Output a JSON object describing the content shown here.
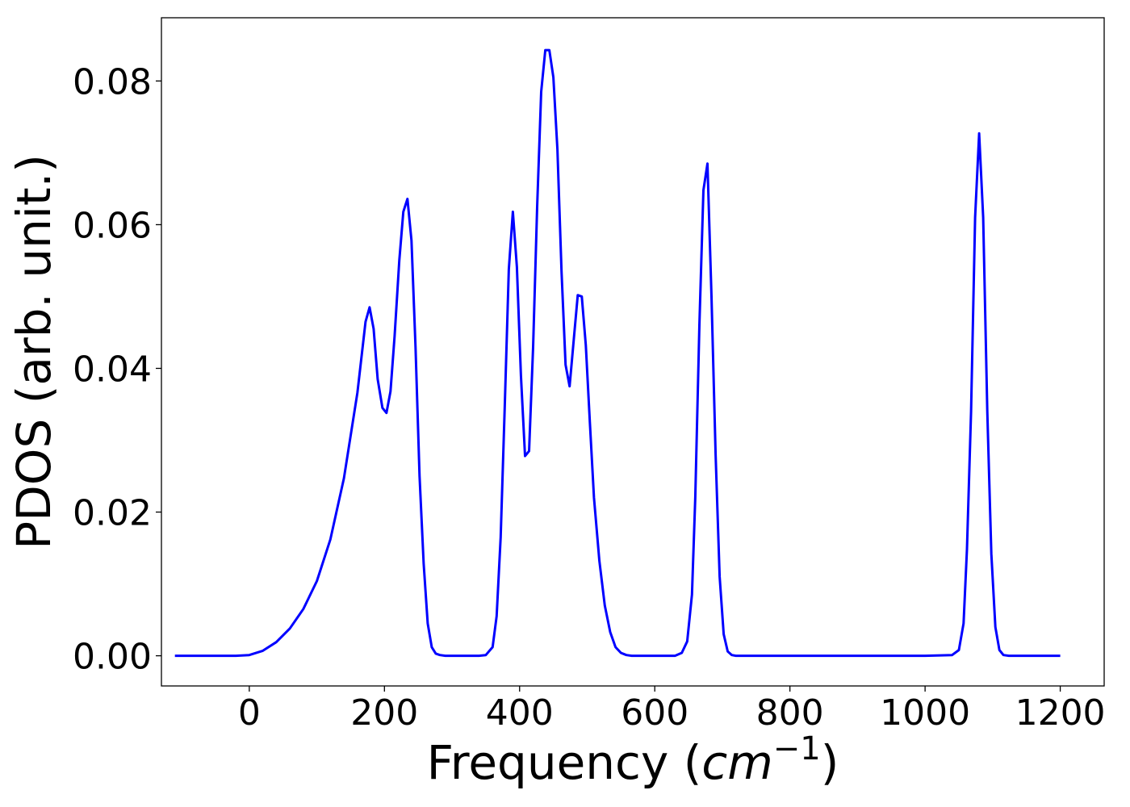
{
  "chart_data": {
    "type": "line",
    "title": "",
    "xlabel": {
      "prefix": "Frequency (",
      "var": "cm",
      "sup": "−1",
      "suffix": ")"
    },
    "ylabel": "PDOS (arb. unit.)",
    "xlim": [
      -130,
      1265
    ],
    "ylim": [
      -0.0042,
      0.0888
    ],
    "x_ticks": [
      0,
      200,
      400,
      600,
      800,
      1000,
      1200
    ],
    "x_tick_labels": [
      "0",
      "200",
      "400",
      "600",
      "800",
      "1000",
      "1200"
    ],
    "y_ticks": [
      0.0,
      0.02,
      0.04,
      0.06,
      0.08
    ],
    "y_tick_labels": [
      "0.00",
      "0.02",
      "0.04",
      "0.06",
      "0.08"
    ],
    "grid": false,
    "legend": "none",
    "series": [
      {
        "color": "#0000ff",
        "x": [
          -110,
          -80,
          -50,
          -20,
          0,
          20,
          40,
          60,
          80,
          100,
          120,
          140,
          160,
          172,
          178,
          184,
          190,
          197,
          203,
          209,
          215,
          222,
          228,
          234,
          240,
          246,
          252,
          258,
          264,
          270,
          276,
          282,
          290,
          300,
          320,
          340,
          350,
          360,
          366,
          372,
          378,
          384,
          390,
          396,
          402,
          408,
          414,
          420,
          426,
          432,
          438,
          444,
          450,
          456,
          462,
          468,
          474,
          480,
          486,
          492,
          498,
          504,
          510,
          518,
          526,
          534,
          542,
          550,
          558,
          566,
          574,
          590,
          610,
          630,
          640,
          648,
          655,
          660,
          666,
          672,
          678,
          684,
          690,
          696,
          702,
          708,
          714,
          720,
          730,
          760,
          800,
          900,
          1000,
          1040,
          1050,
          1057,
          1062,
          1068,
          1074,
          1080,
          1086,
          1092,
          1098,
          1104,
          1110,
          1116,
          1124,
          1140,
          1170,
          1200
        ],
        "y": [
          0.0,
          0.0,
          0.0,
          0.0,
          0.0001,
          0.0007,
          0.0019,
          0.0038,
          0.0065,
          0.0104,
          0.0162,
          0.0247,
          0.0366,
          0.0465,
          0.0485,
          0.0455,
          0.0385,
          0.0345,
          0.0338,
          0.0368,
          0.0445,
          0.055,
          0.0618,
          0.0636,
          0.0578,
          0.043,
          0.025,
          0.0128,
          0.0045,
          0.0012,
          0.0003,
          0.0001,
          0.0,
          0.0,
          0.0,
          0.0,
          0.0001,
          0.0012,
          0.0055,
          0.0165,
          0.0345,
          0.0538,
          0.0618,
          0.0541,
          0.039,
          0.0278,
          0.0285,
          0.043,
          0.0625,
          0.0785,
          0.0843,
          0.0843,
          0.0805,
          0.0705,
          0.0535,
          0.0405,
          0.0375,
          0.0438,
          0.0502,
          0.05,
          0.0432,
          0.0325,
          0.022,
          0.0132,
          0.007,
          0.0033,
          0.0012,
          0.0004,
          0.0001,
          0.0,
          0.0,
          0.0,
          0.0,
          0.0,
          0.0004,
          0.002,
          0.0085,
          0.022,
          0.046,
          0.0648,
          0.0685,
          0.05,
          0.028,
          0.011,
          0.003,
          0.0006,
          0.0001,
          0.0,
          0.0,
          0.0,
          0.0,
          0.0,
          0.0,
          0.0001,
          0.0008,
          0.0045,
          0.0148,
          0.034,
          0.061,
          0.0727,
          0.061,
          0.034,
          0.0142,
          0.004,
          0.0008,
          0.0001,
          0.0,
          0.0,
          0.0,
          0.0
        ]
      }
    ]
  }
}
